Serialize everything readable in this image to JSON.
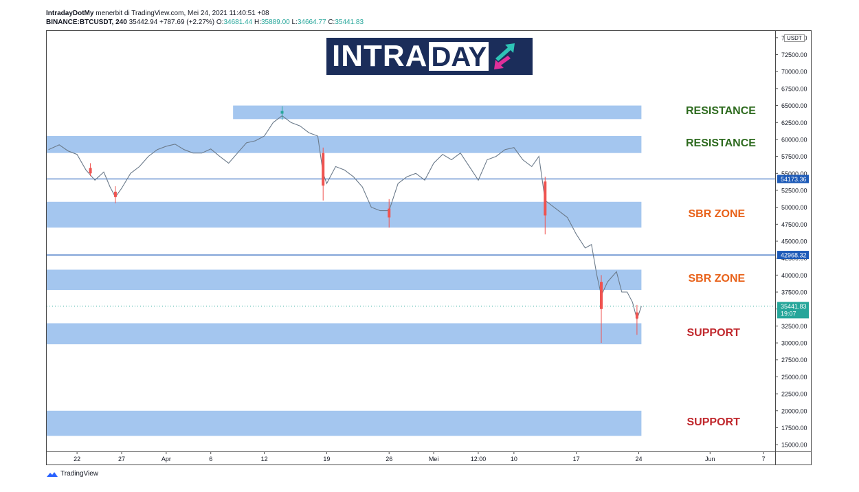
{
  "header": {
    "publisher": "IntradayDotMy",
    "published_text": "menerbit di TradingView.com, Mei 24, 2021 11:40:51 +08",
    "symbol_line": "BINANCE:BTCUSDT, 240",
    "last": "35442.94",
    "change": "+787.69 (+2.27%)",
    "o_label": "O:",
    "o_value": "34681.44",
    "h_label": "H:",
    "h_value": "35889.00",
    "l_label": "L:",
    "l_value": "34664.77",
    "c_label": "C:",
    "c_value": "35441.83"
  },
  "logo": {
    "part1": "INTRA",
    "part2": "DAY"
  },
  "currency": "USDT",
  "footer": {
    "brand": "TradingView"
  },
  "colors": {
    "zone_fill": "#a4c6ef",
    "up_candle": "#26a69a",
    "down_candle": "#ef5350",
    "hline": "#1e5bb8",
    "resistance_label": "#2e6b1f",
    "sbr_label": "#e8621a",
    "support_label": "#c0282d",
    "price_tag": "#26a69a",
    "logo_bg": "#1b2d5a"
  },
  "chart_data": {
    "type": "candlestick",
    "symbol": "BINANCE:BTCUSDT",
    "timeframe": "240",
    "y_axis": {
      "range": [
        14000,
        76000
      ],
      "ticks": [
        "75000.00",
        "72500.00",
        "70000.00",
        "67500.00",
        "65000.00",
        "62500.00",
        "60000.00",
        "57500.00",
        "55000.00",
        "52500.00",
        "50000.00",
        "47500.00",
        "45000.00",
        "42500.00",
        "40000.00",
        "37500.00",
        "35000.00",
        "32500.00",
        "30000.00",
        "27500.00",
        "25000.00",
        "22500.00",
        "20000.00",
        "17500.00",
        "15000.00"
      ]
    },
    "x_axis": {
      "ticks": [
        {
          "label": "22",
          "day": 0
        },
        {
          "label": "27",
          "day": 5
        },
        {
          "label": "Apr",
          "day": 10
        },
        {
          "label": "6",
          "day": 15
        },
        {
          "label": "12",
          "day": 21
        },
        {
          "label": "19",
          "day": 28
        },
        {
          "label": "26",
          "day": 35
        },
        {
          "label": "Mei",
          "day": 40
        },
        {
          "label": "12:00",
          "day": 45
        },
        {
          "label": "10",
          "day": 49
        },
        {
          "label": "17",
          "day": 56
        },
        {
          "label": "24",
          "day": 63
        },
        {
          "label": "Jun",
          "day": 71
        },
        {
          "label": "7",
          "day": 77
        }
      ],
      "range_days": [
        -3.4,
        78.3
      ]
    },
    "zones": [
      {
        "type": "resistance",
        "label": "RESISTANCE",
        "low": 63000,
        "high": 65000,
        "start_day": 17.5,
        "end_day": 63.3
      },
      {
        "type": "resistance",
        "label": "RESISTANCE",
        "low": 58000,
        "high": 60500,
        "start_day": -3.4,
        "end_day": 63.3
      },
      {
        "type": "sbr",
        "label": "SBR ZONE",
        "low": 47000,
        "high": 50800,
        "start_day": -3.4,
        "end_day": 63.3
      },
      {
        "type": "sbr",
        "label": "SBR ZONE",
        "low": 37800,
        "high": 40800,
        "start_day": -3.4,
        "end_day": 63.3
      },
      {
        "type": "support",
        "label": "SUPPORT",
        "low": 29800,
        "high": 32900,
        "start_day": -3.4,
        "end_day": 63.3
      },
      {
        "type": "support",
        "label": "SUPPORT",
        "low": 16300,
        "high": 20000,
        "start_day": -3.4,
        "end_day": 63.3
      }
    ],
    "horizontal_lines": [
      {
        "value": 54173.36,
        "label": "54173.36"
      },
      {
        "value": 42968.32,
        "label": "42968.32"
      }
    ],
    "last_price": {
      "value": 35441.83,
      "label": "35441.83",
      "countdown": "19:07"
    },
    "price_path": [
      {
        "day": -3.2,
        "price": 58500
      },
      {
        "day": -2,
        "price": 59200
      },
      {
        "day": -1,
        "price": 58300
      },
      {
        "day": 0,
        "price": 57800
      },
      {
        "day": 1,
        "price": 55500
      },
      {
        "day": 2,
        "price": 54000
      },
      {
        "day": 3,
        "price": 55200
      },
      {
        "day": 3.7,
        "price": 53000
      },
      {
        "day": 4.3,
        "price": 51500
      },
      {
        "day": 5,
        "price": 52800
      },
      {
        "day": 6,
        "price": 55000
      },
      {
        "day": 7,
        "price": 56000
      },
      {
        "day": 8,
        "price": 57500
      },
      {
        "day": 9,
        "price": 58500
      },
      {
        "day": 10,
        "price": 59000
      },
      {
        "day": 11,
        "price": 59300
      },
      {
        "day": 12,
        "price": 58500
      },
      {
        "day": 13,
        "price": 58000
      },
      {
        "day": 14,
        "price": 58000
      },
      {
        "day": 15,
        "price": 58600
      },
      {
        "day": 16,
        "price": 57500
      },
      {
        "day": 17,
        "price": 56500
      },
      {
        "day": 18,
        "price": 58000
      },
      {
        "day": 19,
        "price": 59500
      },
      {
        "day": 20,
        "price": 59800
      },
      {
        "day": 21,
        "price": 60500
      },
      {
        "day": 22,
        "price": 62500
      },
      {
        "day": 23,
        "price": 63500
      },
      {
        "day": 24,
        "price": 62500
      },
      {
        "day": 25,
        "price": 62000
      },
      {
        "day": 26,
        "price": 61000
      },
      {
        "day": 27,
        "price": 60500
      },
      {
        "day": 27.6,
        "price": 55000
      },
      {
        "day": 28,
        "price": 53500
      },
      {
        "day": 29,
        "price": 56000
      },
      {
        "day": 30,
        "price": 55500
      },
      {
        "day": 31,
        "price": 54500
      },
      {
        "day": 32,
        "price": 53000
      },
      {
        "day": 33,
        "price": 50000
      },
      {
        "day": 34,
        "price": 49500
      },
      {
        "day": 35,
        "price": 49500
      },
      {
        "day": 36,
        "price": 53500
      },
      {
        "day": 37,
        "price": 54500
      },
      {
        "day": 38,
        "price": 55000
      },
      {
        "day": 39,
        "price": 54000
      },
      {
        "day": 40,
        "price": 56500
      },
      {
        "day": 41,
        "price": 57800
      },
      {
        "day": 42,
        "price": 57000
      },
      {
        "day": 43,
        "price": 58000
      },
      {
        "day": 44,
        "price": 56000
      },
      {
        "day": 45,
        "price": 54000
      },
      {
        "day": 46,
        "price": 57000
      },
      {
        "day": 47,
        "price": 57500
      },
      {
        "day": 48,
        "price": 58500
      },
      {
        "day": 49,
        "price": 58800
      },
      {
        "day": 50,
        "price": 57000
      },
      {
        "day": 51,
        "price": 56000
      },
      {
        "day": 51.8,
        "price": 57500
      },
      {
        "day": 52.5,
        "price": 51000
      },
      {
        "day": 53,
        "price": 50500
      },
      {
        "day": 54,
        "price": 49500
      },
      {
        "day": 55,
        "price": 48500
      },
      {
        "day": 56,
        "price": 46000
      },
      {
        "day": 57,
        "price": 44000
      },
      {
        "day": 57.7,
        "price": 44500
      },
      {
        "day": 58.3,
        "price": 40000
      },
      {
        "day": 58.8,
        "price": 37000
      },
      {
        "day": 59.5,
        "price": 39000
      },
      {
        "day": 60.5,
        "price": 40500
      },
      {
        "day": 61.1,
        "price": 37500
      },
      {
        "day": 61.7,
        "price": 37500
      },
      {
        "day": 62.3,
        "price": 36000
      },
      {
        "day": 62.8,
        "price": 33500
      },
      {
        "day": 63.3,
        "price": 35441
      }
    ],
    "candles": [
      {
        "day": 1.5,
        "o": 55800,
        "h": 56500,
        "l": 54600,
        "c": 55000
      },
      {
        "day": 4.3,
        "o": 52300,
        "h": 53100,
        "l": 50600,
        "c": 51500
      },
      {
        "day": 23.0,
        "o": 63800,
        "h": 64900,
        "l": 62900,
        "c": 64200
      },
      {
        "day": 27.6,
        "o": 58000,
        "h": 58800,
        "l": 51000,
        "c": 53200
      },
      {
        "day": 35.0,
        "o": 49800,
        "h": 51200,
        "l": 47000,
        "c": 48500
      },
      {
        "day": 52.5,
        "o": 53800,
        "h": 54500,
        "l": 46000,
        "c": 48800
      },
      {
        "day": 58.8,
        "o": 39000,
        "h": 40000,
        "l": 30000,
        "c": 35000
      },
      {
        "day": 62.8,
        "o": 34500,
        "h": 35600,
        "l": 31200,
        "c": 33600
      }
    ]
  }
}
